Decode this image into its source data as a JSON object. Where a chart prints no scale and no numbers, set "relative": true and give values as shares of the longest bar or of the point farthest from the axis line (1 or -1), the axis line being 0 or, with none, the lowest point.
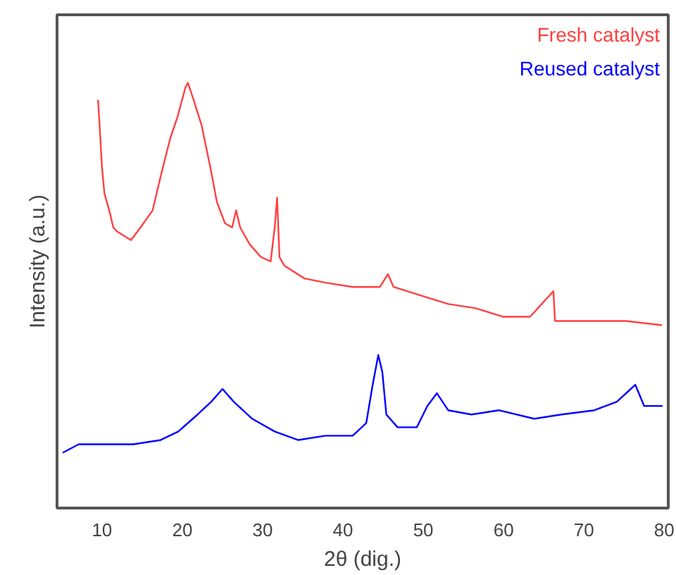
{
  "chart_data": {
    "type": "line",
    "relative": true,
    "xlabel": "2θ (dig.)",
    "ylabel": "Intensity (a.u.)",
    "xlim": [
      4.4,
      80.5
    ],
    "xticks": [
      10,
      20,
      30,
      40,
      50,
      60,
      70,
      80
    ],
    "legend": "top right",
    "grid": false,
    "series": [
      {
        "name": "Fresh catalyst",
        "color": "#ff4040",
        "x": [
          9.5,
          9.7,
          10.0,
          10.3,
          10.9,
          11.4,
          11.9,
          13.6,
          14.8,
          16.3,
          17.3,
          18.5,
          19.4,
          20.4,
          20.7,
          21.4,
          22.4,
          23.5,
          24.3,
          25.3,
          26.2,
          26.7,
          27.2,
          28.4,
          29.8,
          31.0,
          31.5,
          31.8,
          32.1,
          32.7,
          35.2,
          37.8,
          41.2,
          44.6,
          45.6,
          46.3,
          49.7,
          53.1,
          56.5,
          59.9,
          63.3,
          66.2,
          66.4,
          70.1,
          75.2,
          79.7
        ],
        "values": [
          0.96,
          0.9,
          0.8,
          0.74,
          0.7,
          0.66,
          0.65,
          0.63,
          0.66,
          0.7,
          0.78,
          0.87,
          0.92,
          0.99,
          1.0,
          0.96,
          0.9,
          0.8,
          0.72,
          0.67,
          0.66,
          0.7,
          0.66,
          0.62,
          0.59,
          0.58,
          0.66,
          0.73,
          0.59,
          0.57,
          0.54,
          0.53,
          0.52,
          0.52,
          0.55,
          0.52,
          0.5,
          0.48,
          0.47,
          0.45,
          0.45,
          0.51,
          0.44,
          0.44,
          0.44,
          0.43
        ]
      },
      {
        "name": "Reused catalyst",
        "color": "#0000ff",
        "x": [
          5.1,
          7.1,
          10.5,
          13.9,
          17.3,
          19.5,
          21.9,
          23.6,
          25.0,
          26.4,
          28.7,
          31.5,
          34.4,
          37.8,
          41.2,
          42.9,
          43.7,
          44.4,
          44.9,
          45.4,
          46.8,
          49.2,
          50.5,
          51.7,
          53.1,
          56.0,
          59.4,
          63.8,
          67.2,
          71.3,
          74.1,
          76.4,
          77.5,
          79.8
        ],
        "values": [
          0.13,
          0.15,
          0.15,
          0.15,
          0.16,
          0.18,
          0.22,
          0.25,
          0.28,
          0.25,
          0.21,
          0.18,
          0.16,
          0.17,
          0.17,
          0.2,
          0.29,
          0.36,
          0.32,
          0.22,
          0.19,
          0.19,
          0.24,
          0.27,
          0.23,
          0.22,
          0.23,
          0.21,
          0.22,
          0.23,
          0.25,
          0.29,
          0.24,
          0.24
        ]
      }
    ]
  }
}
